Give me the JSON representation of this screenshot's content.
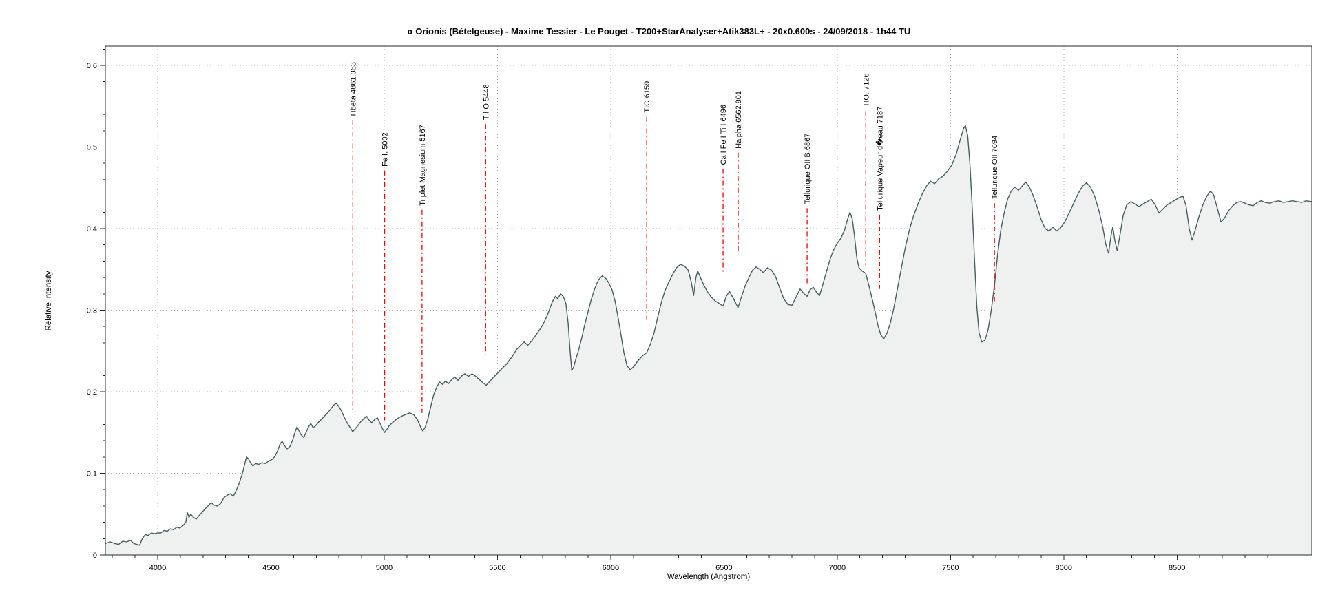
{
  "chart_data": {
    "type": "area",
    "title": "α Orionis (Bételgeuse) - Maxime Tessier - Le Pouget - T200+StarAnalyser+Atik383L+ - 20x0.600s - 24/09/2018 - 1h44 TU",
    "xlabel": "Wavelength (Angstrom)",
    "ylabel": "Relative intensity",
    "xlim": [
      3769,
      9095
    ],
    "ylim": [
      0,
      0.6236
    ],
    "grid": "dotted at major ticks",
    "legend": "none",
    "x_tick_values": [
      4000,
      4500,
      5000,
      5500,
      6000,
      6500,
      7000,
      7500,
      8000,
      8500,
      9000
    ],
    "x_tick_labels": [
      "4000",
      "4500",
      "5000",
      "5500",
      "6000",
      "6500",
      "7000",
      "7500",
      "8000",
      "8500",
      ""
    ],
    "x_minor_tick_step": 100,
    "y_tick_values": [
      0,
      0.1,
      0.2,
      0.3,
      0.4,
      0.5,
      0.6
    ],
    "y_tick_labels": [
      "0",
      "0.1",
      "0.2",
      "0.3",
      "0.4",
      "0.5",
      "0.6"
    ],
    "y_minor_tick_step": 0.02,
    "colors": {
      "curve": "#455f5c",
      "fill": "#eef1ef",
      "annotation_line": "#ff0000",
      "grid": "#b8b8b8",
      "axis": "#2a2a2a",
      "text": "#000000"
    },
    "series": [
      {
        "name": "spectrum",
        "x": [
          3769,
          3790,
          3810,
          3828,
          3846,
          3862,
          3880,
          3895,
          3908,
          3920,
          3932,
          3945,
          3958,
          3972,
          3986,
          4000,
          4014,
          4028,
          4042,
          4056,
          4070,
          4084,
          4098,
          4112,
          4124,
          4131,
          4138,
          4146,
          4158,
          4170,
          4182,
          4195,
          4208,
          4222,
          4236,
          4250,
          4264,
          4278,
          4292,
          4306,
          4320,
          4334,
          4348,
          4360,
          4372,
          4383,
          4392,
          4400,
          4410,
          4420,
          4432,
          4446,
          4460,
          4475,
          4490,
          4505,
          4518,
          4530,
          4542,
          4550,
          4560,
          4572,
          4584,
          4596,
          4608,
          4615,
          4624,
          4634,
          4645,
          4656,
          4668,
          4676,
          4686,
          4696,
          4708,
          4722,
          4736,
          4750,
          4762,
          4775,
          4788,
          4800,
          4812,
          4825,
          4838,
          4850,
          4861,
          4870,
          4882,
          4896,
          4910,
          4922,
          4934,
          4945,
          4958,
          4970,
          4982,
          4992,
          5002,
          5012,
          5024,
          5040,
          5058,
          5076,
          5094,
          5112,
          5130,
          5146,
          5160,
          5170,
          5180,
          5192,
          5204,
          5218,
          5232,
          5245,
          5258,
          5270,
          5284,
          5298,
          5312,
          5326,
          5340,
          5356,
          5372,
          5388,
          5404,
          5420,
          5436,
          5450,
          5464,
          5480,
          5498,
          5518,
          5540,
          5562,
          5585,
          5602,
          5618,
          5634,
          5650,
          5666,
          5684,
          5702,
          5722,
          5742,
          5756,
          5766,
          5778,
          5790,
          5802,
          5812,
          5820,
          5828,
          5836,
          5846,
          5858,
          5872,
          5886,
          5900,
          5914,
          5930,
          5946,
          5962,
          5978,
          5992,
          6006,
          6020,
          6032,
          6044,
          6058,
          6072,
          6086,
          6102,
          6120,
          6140,
          6159,
          6176,
          6192,
          6208,
          6224,
          6240,
          6256,
          6272,
          6290,
          6308,
          6326,
          6342,
          6356,
          6366,
          6376,
          6384,
          6396,
          6410,
          6426,
          6444,
          6462,
          6480,
          6496,
          6510,
          6524,
          6542,
          6562,
          6578,
          6594,
          6610,
          6626,
          6642,
          6658,
          6674,
          6692,
          6710,
          6728,
          6746,
          6764,
          6782,
          6800,
          6818,
          6836,
          6854,
          6867,
          6880,
          6894,
          6908,
          6922,
          6936,
          6952,
          6968,
          6984,
          7000,
          7016,
          7032,
          7046,
          7056,
          7066,
          7076,
          7086,
          7096,
          7110,
          7126,
          7140,
          7154,
          7168,
          7180,
          7192,
          7205,
          7220,
          7235,
          7250,
          7265,
          7282,
          7300,
          7318,
          7336,
          7356,
          7376,
          7396,
          7412,
          7430,
          7448,
          7466,
          7486,
          7506,
          7526,
          7544,
          7558,
          7566,
          7576,
          7586,
          7596,
          7606,
          7616,
          7626,
          7638,
          7652,
          7666,
          7680,
          7694,
          7708,
          7722,
          7736,
          7752,
          7768,
          7784,
          7800,
          7816,
          7832,
          7848,
          7864,
          7882,
          7900,
          7918,
          7936,
          7952,
          7968,
          7986,
          8004,
          8022,
          8042,
          8062,
          8082,
          8100,
          8118,
          8136,
          8154,
          8172,
          8186,
          8198,
          8208,
          8216,
          8226,
          8236,
          8248,
          8262,
          8278,
          8296,
          8314,
          8332,
          8350,
          8368,
          8386,
          8404,
          8420,
          8438,
          8456,
          8474,
          8492,
          8510,
          8526,
          8540,
          8554,
          8566,
          8580,
          8596,
          8614,
          8632,
          8648,
          8662,
          8678,
          8694,
          8710,
          8728,
          8746,
          8764,
          8782,
          8800,
          8818,
          8836,
          8854,
          8872,
          8890,
          8910,
          8930,
          8950,
          8970,
          8990,
          9010,
          9030,
          9050,
          9070,
          9095
        ],
        "y": [
          0.014,
          0.016,
          0.014,
          0.013,
          0.017,
          0.016,
          0.018,
          0.014,
          0.013,
          0.012,
          0.02,
          0.025,
          0.024,
          0.027,
          0.026,
          0.027,
          0.027,
          0.03,
          0.029,
          0.032,
          0.031,
          0.034,
          0.033,
          0.036,
          0.04,
          0.052,
          0.046,
          0.05,
          0.046,
          0.044,
          0.048,
          0.052,
          0.056,
          0.06,
          0.064,
          0.061,
          0.06,
          0.063,
          0.07,
          0.073,
          0.075,
          0.072,
          0.08,
          0.088,
          0.098,
          0.11,
          0.12,
          0.118,
          0.113,
          0.109,
          0.112,
          0.111,
          0.113,
          0.112,
          0.115,
          0.117,
          0.121,
          0.128,
          0.137,
          0.139,
          0.134,
          0.13,
          0.133,
          0.141,
          0.152,
          0.157,
          0.152,
          0.147,
          0.144,
          0.151,
          0.158,
          0.161,
          0.156,
          0.158,
          0.162,
          0.166,
          0.17,
          0.174,
          0.178,
          0.183,
          0.186,
          0.182,
          0.176,
          0.168,
          0.161,
          0.156,
          0.151,
          0.154,
          0.158,
          0.163,
          0.167,
          0.17,
          0.165,
          0.162,
          0.166,
          0.168,
          0.161,
          0.155,
          0.15,
          0.154,
          0.159,
          0.163,
          0.167,
          0.17,
          0.172,
          0.174,
          0.172,
          0.166,
          0.157,
          0.152,
          0.156,
          0.166,
          0.18,
          0.196,
          0.206,
          0.212,
          0.209,
          0.213,
          0.21,
          0.215,
          0.218,
          0.214,
          0.219,
          0.222,
          0.219,
          0.222,
          0.219,
          0.215,
          0.211,
          0.208,
          0.212,
          0.217,
          0.222,
          0.228,
          0.234,
          0.242,
          0.252,
          0.257,
          0.261,
          0.257,
          0.262,
          0.268,
          0.275,
          0.283,
          0.295,
          0.31,
          0.317,
          0.314,
          0.32,
          0.317,
          0.308,
          0.285,
          0.252,
          0.226,
          0.23,
          0.24,
          0.251,
          0.266,
          0.283,
          0.298,
          0.313,
          0.327,
          0.337,
          0.342,
          0.339,
          0.333,
          0.325,
          0.31,
          0.292,
          0.272,
          0.248,
          0.232,
          0.227,
          0.231,
          0.238,
          0.244,
          0.248,
          0.259,
          0.273,
          0.292,
          0.31,
          0.324,
          0.334,
          0.343,
          0.352,
          0.356,
          0.354,
          0.349,
          0.334,
          0.318,
          0.34,
          0.348,
          0.34,
          0.331,
          0.323,
          0.316,
          0.311,
          0.308,
          0.305,
          0.317,
          0.323,
          0.314,
          0.303,
          0.317,
          0.33,
          0.34,
          0.349,
          0.353,
          0.35,
          0.346,
          0.352,
          0.349,
          0.341,
          0.327,
          0.314,
          0.307,
          0.306,
          0.316,
          0.326,
          0.32,
          0.317,
          0.325,
          0.328,
          0.322,
          0.318,
          0.331,
          0.347,
          0.362,
          0.374,
          0.382,
          0.388,
          0.398,
          0.412,
          0.42,
          0.412,
          0.392,
          0.365,
          0.352,
          0.348,
          0.345,
          0.33,
          0.314,
          0.297,
          0.281,
          0.27,
          0.265,
          0.272,
          0.285,
          0.303,
          0.325,
          0.35,
          0.376,
          0.398,
          0.415,
          0.43,
          0.443,
          0.453,
          0.458,
          0.455,
          0.461,
          0.464,
          0.47,
          0.478,
          0.492,
          0.51,
          0.523,
          0.526,
          0.514,
          0.478,
          0.425,
          0.362,
          0.305,
          0.272,
          0.261,
          0.263,
          0.276,
          0.3,
          0.33,
          0.368,
          0.398,
          0.418,
          0.436,
          0.446,
          0.451,
          0.447,
          0.452,
          0.457,
          0.451,
          0.441,
          0.427,
          0.411,
          0.4,
          0.397,
          0.402,
          0.397,
          0.401,
          0.408,
          0.418,
          0.43,
          0.442,
          0.452,
          0.456,
          0.451,
          0.44,
          0.423,
          0.402,
          0.38,
          0.37,
          0.39,
          0.402,
          0.385,
          0.373,
          0.392,
          0.416,
          0.429,
          0.433,
          0.43,
          0.427,
          0.43,
          0.433,
          0.436,
          0.429,
          0.419,
          0.424,
          0.429,
          0.432,
          0.435,
          0.438,
          0.44,
          0.428,
          0.4,
          0.386,
          0.398,
          0.414,
          0.429,
          0.44,
          0.446,
          0.441,
          0.425,
          0.408,
          0.413,
          0.422,
          0.428,
          0.432,
          0.433,
          0.431,
          0.429,
          0.428,
          0.432,
          0.434,
          0.432,
          0.431,
          0.433,
          0.434,
          0.432,
          0.433,
          0.434,
          0.433,
          0.432,
          0.434,
          0.433
        ]
      }
    ],
    "annotations": [
      {
        "label": "Hbeta 4861.363",
        "wavelength": 4861.363,
        "line_top": 0.533,
        "line_end": 0.174
      },
      {
        "label": "Fe I. 5002",
        "wavelength": 5002,
        "line_top": 0.471,
        "line_end": 0.165
      },
      {
        "label": "Triplet Magnesium 5167",
        "wavelength": 5167,
        "line_top": 0.423,
        "line_end": 0.174
      },
      {
        "label": "T I O  5448",
        "wavelength": 5448,
        "line_top": 0.528,
        "line_end": 0.246
      },
      {
        "label": "TIO 6159",
        "wavelength": 6159,
        "line_top": 0.537,
        "line_end": 0.288
      },
      {
        "label": "Ca I Fe I Ti I 6496",
        "wavelength": 6496,
        "line_top": 0.473,
        "line_end": 0.347
      },
      {
        "label": "Halpha 6562.801",
        "wavelength": 6562.801,
        "line_top": 0.493,
        "line_end": 0.37
      },
      {
        "label": "Tellurique OII B 6867",
        "wavelength": 6867,
        "line_top": 0.425,
        "line_end": 0.33
      },
      {
        "label": "TIO. 7126",
        "wavelength": 7126,
        "line_top": 0.544,
        "line_end": 0.355
      },
      {
        "label": "Tellurique Vapeur d�eau 7187",
        "wavelength": 7187,
        "line_top": 0.417,
        "line_end": 0.326
      },
      {
        "label": "Tellurique OII 7694",
        "wavelength": 7694,
        "line_top": 0.431,
        "line_end": 0.311
      }
    ]
  }
}
